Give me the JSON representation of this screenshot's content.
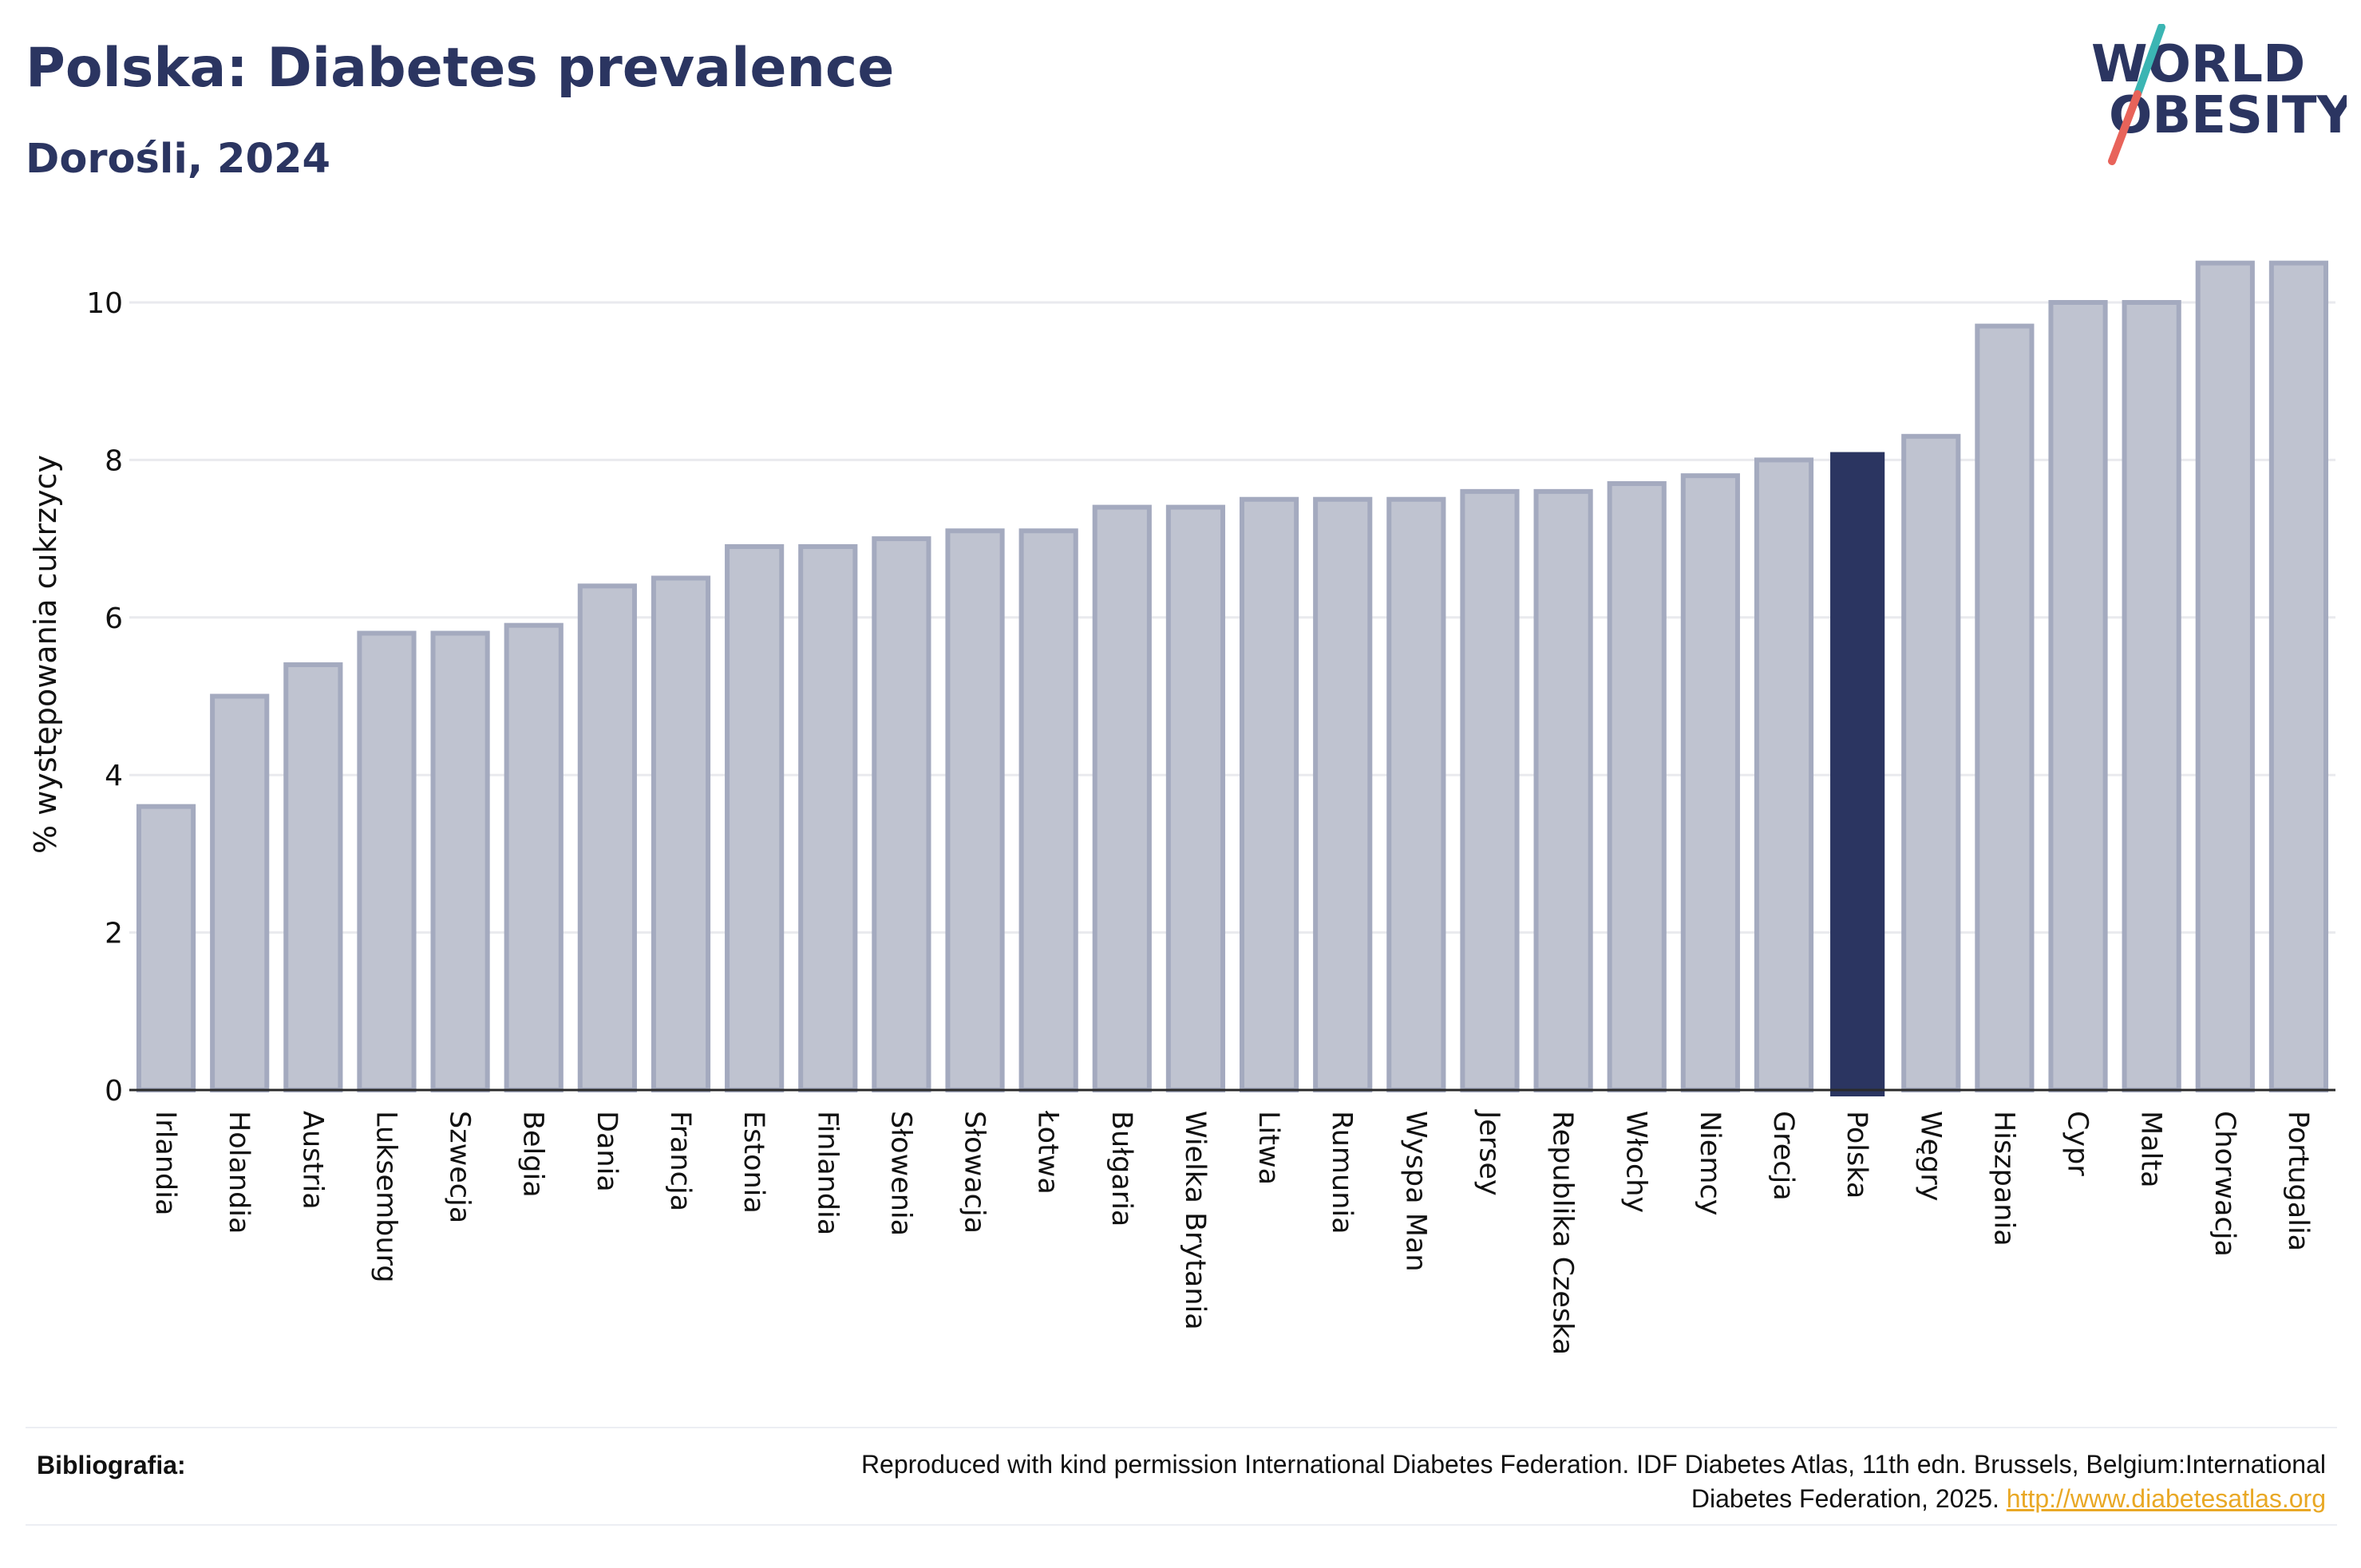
{
  "header": {
    "title": "Polska: Diabetes prevalence",
    "subtitle": "Dorośli, 2024"
  },
  "logo": {
    "line1": "WORLD",
    "line2": "OBESITY",
    "text_color": "#2b3561",
    "slash_colors": [
      "#3bb5b3",
      "#e8635a"
    ]
  },
  "colors": {
    "bar_default_fill": "#bfc3d0",
    "bar_default_stroke": "#a4aabf",
    "bar_highlight": "#2b3561",
    "grid": "#e9eaee",
    "axis": "#2a2a2a"
  },
  "chart_data": {
    "type": "bar",
    "title": "",
    "xlabel": "",
    "ylabel": "% występowania cukrzycy",
    "ylim": [
      0,
      10.8
    ],
    "yticks": [
      0,
      2,
      4,
      6,
      8,
      10
    ],
    "grid": true,
    "categories": [
      "Irlandia",
      "Holandia",
      "Austria",
      "Luksemburg",
      "Szwecja",
      "Belgia",
      "Dania",
      "Francja",
      "Estonia",
      "Finlandia",
      "Słowenia",
      "Słowacja",
      "Łotwa",
      "Bułgaria",
      "Wielka Brytania",
      "Litwa",
      "Rumunia",
      "Wyspa Man",
      "Jersey",
      "Republika Czeska",
      "Włochy",
      "Niemcy",
      "Grecja",
      "Polska",
      "Węgry",
      "Hiszpania",
      "Cypr",
      "Malta",
      "Chorwacja",
      "Portugalia"
    ],
    "values": [
      3.6,
      5.0,
      5.4,
      5.8,
      5.8,
      5.9,
      6.4,
      6.5,
      6.9,
      6.9,
      7.0,
      7.1,
      7.1,
      7.4,
      7.4,
      7.5,
      7.5,
      7.5,
      7.6,
      7.6,
      7.7,
      7.8,
      8.0,
      8.1,
      8.3,
      9.7,
      10.0,
      10.0,
      10.5,
      10.5
    ],
    "highlight": "Polska"
  },
  "footer": {
    "label": "Bibliografia:",
    "text_line1": "Reproduced with kind permission International Diabetes Federation. IDF Diabetes Atlas, 11th edn. Brussels, Belgium:International",
    "text_line2": "Diabetes Federation, 2025. ",
    "link": "http://www.diabetesatlas.org"
  }
}
